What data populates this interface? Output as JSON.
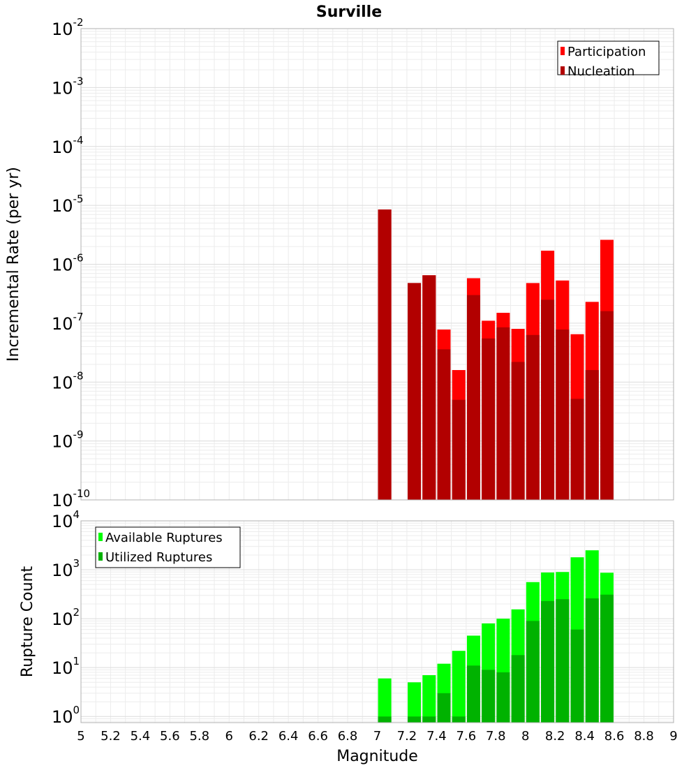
{
  "chart_data": [
    {
      "type": "bar",
      "title": "Surville",
      "xlabel": "",
      "ylabel": "Incremental Rate (per yr)",
      "yscale": "log",
      "xlim": [
        5,
        9
      ],
      "ylim": [
        1e-10,
        0.01
      ],
      "grid": true,
      "legend_position": "top-right",
      "ytick_bases": [
        "10",
        "10",
        "10",
        "10",
        "10",
        "10",
        "10",
        "10",
        "10"
      ],
      "ytick_exponents": [
        "-10",
        "-9",
        "-8",
        "-7",
        "-6",
        "-5",
        "-4",
        "-3",
        "-2"
      ],
      "x": [
        7.05,
        7.25,
        7.35,
        7.45,
        7.55,
        7.65,
        7.75,
        7.85,
        7.95,
        8.05,
        8.15,
        8.25,
        8.35,
        8.45,
        8.55
      ],
      "series": [
        {
          "name": "Participation",
          "color": "#ff0000",
          "values": [
            8.5e-06,
            4.8e-07,
            6.5e-07,
            7.8e-08,
            1.6e-08,
            5.8e-07,
            1.1e-07,
            1.5e-07,
            8e-08,
            4.8e-07,
            1.7e-06,
            5.3e-07,
            6.5e-08,
            2.3e-07,
            2.6e-06
          ]
        },
        {
          "name": "Nucleation",
          "color": "#b20000",
          "values": [
            8.5e-06,
            4.8e-07,
            6.5e-07,
            3.6e-08,
            5e-09,
            3e-07,
            5.5e-08,
            8.5e-08,
            2.2e-08,
            6.3e-08,
            2.5e-07,
            7.8e-08,
            5.2e-09,
            1.6e-08,
            1.6e-07
          ]
        }
      ]
    },
    {
      "type": "bar",
      "title": "",
      "xlabel": "Magnitude",
      "ylabel": "Rupture Count",
      "yscale": "log",
      "xlim": [
        5,
        9
      ],
      "ylim": [
        0.75,
        10000
      ],
      "grid": true,
      "legend_position": "top-left",
      "xticks": [
        "5",
        "5.2",
        "5.4",
        "5.6",
        "5.8",
        "6",
        "6.2",
        "6.4",
        "6.6",
        "6.8",
        "7",
        "7.2",
        "7.4",
        "7.6",
        "7.8",
        "8",
        "8.2",
        "8.4",
        "8.6",
        "8.8",
        "9"
      ],
      "ytick_bases": [
        "10",
        "10",
        "10",
        "10",
        "10"
      ],
      "ytick_exponents": [
        "0",
        "1",
        "2",
        "3",
        "4"
      ],
      "x": [
        7.05,
        7.25,
        7.35,
        7.45,
        7.55,
        7.65,
        7.75,
        7.85,
        7.95,
        8.05,
        8.15,
        8.25,
        8.35,
        8.45,
        8.55
      ],
      "series": [
        {
          "name": "Available Ruptures",
          "color": "#00ff00",
          "values": [
            6,
            5,
            7,
            12,
            22,
            45,
            80,
            100,
            155,
            560,
            880,
            900,
            1800,
            2500,
            870
          ]
        },
        {
          "name": "Utilized Ruptures",
          "color": "#00b200",
          "values": [
            1,
            1,
            1,
            3,
            1,
            11,
            9,
            8,
            18,
            90,
            230,
            250,
            60,
            260,
            310
          ]
        }
      ]
    }
  ]
}
